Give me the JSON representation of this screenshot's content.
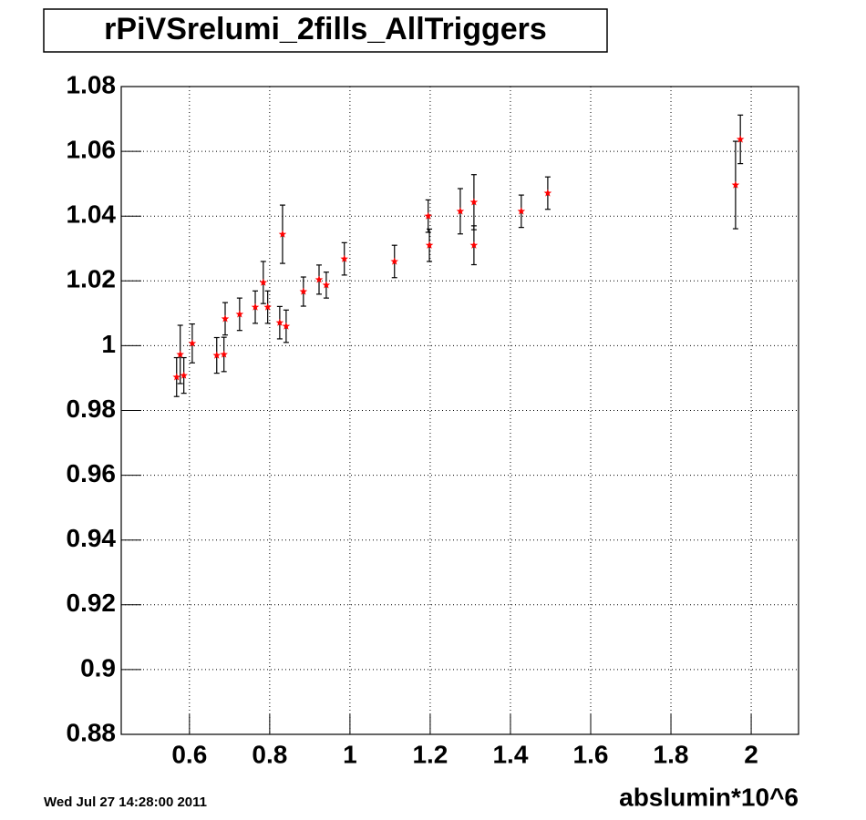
{
  "chart_data": {
    "type": "scatter",
    "title": "rPiVSrelumi_2fills_AllTriggers",
    "x_label": "abslumin*10^6",
    "date_stamp": "Wed Jul 27 14:28:00 2011",
    "color": "#ff0000",
    "error_color": "#000000",
    "grid": true,
    "xlim": [
      0.43,
      2.118
    ],
    "ylim": [
      0.88,
      1.08
    ],
    "xticks": [
      0.6,
      0.8,
      1,
      1.2,
      1.4,
      1.6,
      1.8,
      2
    ],
    "yticks": [
      0.88,
      0.9,
      0.92,
      0.94,
      0.96,
      0.98,
      1,
      1.02,
      1.04,
      1.06,
      1.08
    ],
    "x": [
      0.568,
      0.577,
      0.586,
      0.607,
      0.668,
      0.686,
      0.689,
      0.725,
      0.764,
      0.784,
      0.795,
      0.825,
      0.832,
      0.841,
      0.884,
      0.923,
      0.941,
      0.986,
      1.111,
      1.195,
      1.198,
      1.275,
      1.309,
      1.309,
      1.427,
      1.493,
      1.961,
      1.973
    ],
    "y": [
      0.9903,
      0.9973,
      0.9908,
      1.0007,
      0.997,
      0.9973,
      1.0083,
      1.0097,
      1.0119,
      1.0195,
      1.0119,
      1.0071,
      1.0344,
      1.006,
      1.0167,
      1.0204,
      1.0187,
      1.0268,
      1.026,
      1.04,
      1.031,
      1.0415,
      1.0443,
      1.031,
      1.0415,
      1.0471,
      1.0496,
      1.0637
    ],
    "errors": [
      0.006,
      0.009,
      0.0055,
      0.006,
      0.0055,
      0.0053,
      0.005,
      0.005,
      0.005,
      0.0065,
      0.005,
      0.005,
      0.009,
      0.005,
      0.0045,
      0.0045,
      0.004,
      0.005,
      0.005,
      0.005,
      0.005,
      0.007,
      0.0085,
      0.006,
      0.005,
      0.005,
      0.0135,
      0.0075
    ]
  }
}
